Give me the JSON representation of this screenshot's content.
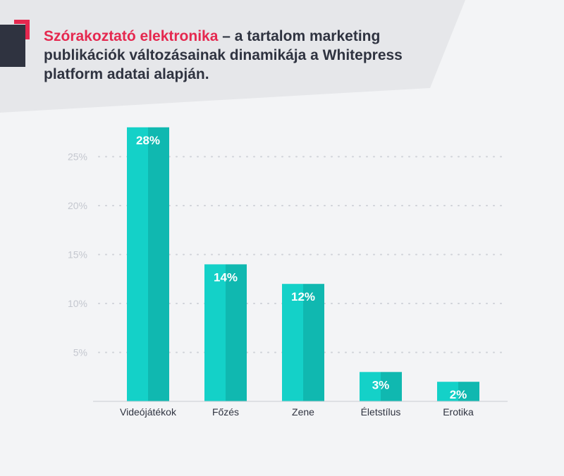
{
  "title": {
    "highlight": "Szórakoztató elektronika",
    "rest": " – a tartalom marketing publikációk változásainak dinamikája a Whitepress platform adatai alapján."
  },
  "colors": {
    "accent": "#e5284f",
    "bar_light": "#14d1c8",
    "bar_dark": "#10b8b0",
    "header_bg": "#e6e7ea",
    "dark_block": "#2f3340"
  },
  "chart_data": {
    "type": "bar",
    "categories": [
      "Videójátékok",
      "Főzés",
      "Zene",
      "Életstílus",
      "Erotika"
    ],
    "values": [
      28,
      14,
      12,
      3,
      2
    ],
    "value_labels": [
      "28%",
      "14%",
      "12%",
      "3%",
      "2%"
    ],
    "yticks": [
      5,
      10,
      15,
      20,
      25
    ],
    "ytick_labels": [
      "5%",
      "10%",
      "15%",
      "20%",
      "25%"
    ],
    "ylim": [
      0,
      28
    ],
    "grid": true,
    "title": "",
    "xlabel": "",
    "ylabel": ""
  }
}
